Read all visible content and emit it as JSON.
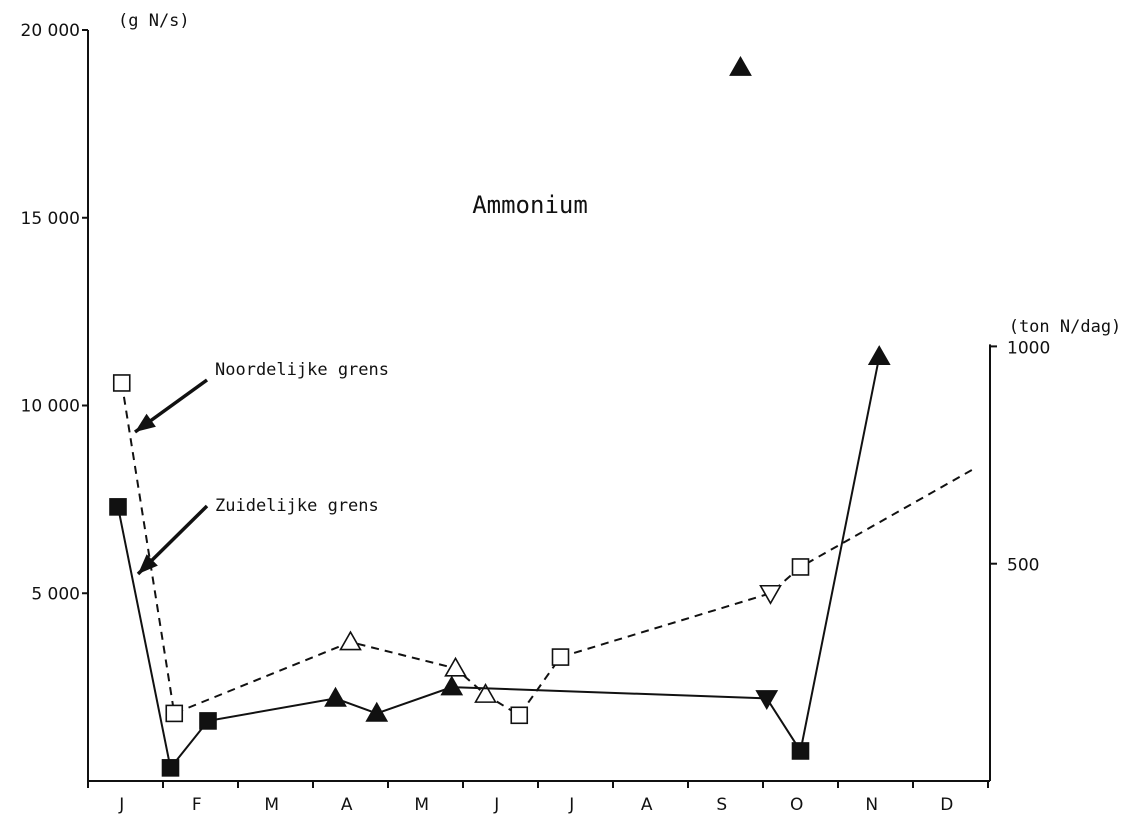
{
  "chart_data": {
    "type": "line",
    "title": "Ammonium",
    "left_axis": {
      "unit": "(g N/s)",
      "ylim": [
        0,
        20000
      ],
      "ticks": [
        5000,
        10000,
        15000,
        20000
      ],
      "tick_labels": [
        "5 000",
        "10 000",
        "15 000",
        "20 000"
      ]
    },
    "right_axis": {
      "unit": "(ton N/dag)",
      "ylim": [
        0,
        1728
      ],
      "ticks": [
        500,
        1000
      ],
      "tick_labels": [
        "500",
        "1000"
      ]
    },
    "categories": [
      "J",
      "F",
      "M",
      "A",
      "M",
      "J",
      "J",
      "A",
      "S",
      "O",
      "N",
      "D"
    ],
    "xlim": [
      0,
      12
    ],
    "grid": false,
    "annotations": {
      "noord_label": "Noordelijke grens",
      "zuid_label": "Zuidelijke grens"
    },
    "series": [
      {
        "name": "Noordelijke grens",
        "line_style": "dashed",
        "points": [
          {
            "x": 0.45,
            "y": 10600,
            "marker": "open-square"
          },
          {
            "x": 1.15,
            "y": 1800,
            "marker": "open-square"
          },
          {
            "x": 3.5,
            "y": 3700,
            "marker": "open-triangle-up"
          },
          {
            "x": 4.9,
            "y": 3000,
            "marker": "open-triangle-up"
          },
          {
            "x": 5.3,
            "y": 2300,
            "marker": "open-triangle-up"
          },
          {
            "x": 5.75,
            "y": 1750,
            "marker": "open-square"
          },
          {
            "x": 6.3,
            "y": 3300,
            "marker": "open-square"
          },
          {
            "x": 9.1,
            "y": 5000,
            "marker": "open-triangle-down"
          },
          {
            "x": 9.5,
            "y": 5700,
            "marker": "open-square"
          },
          {
            "x": 11.8,
            "y": 8300,
            "marker": "none"
          }
        ]
      },
      {
        "name": "Zuidelijke grens",
        "line_style": "solid",
        "points": [
          {
            "x": 0.4,
            "y": 7300,
            "marker": "filled-square"
          },
          {
            "x": 1.1,
            "y": 350,
            "marker": "filled-square"
          },
          {
            "x": 1.6,
            "y": 1600,
            "marker": "filled-square"
          },
          {
            "x": 3.3,
            "y": 2200,
            "marker": "filled-triangle-up"
          },
          {
            "x": 3.85,
            "y": 1800,
            "marker": "filled-triangle-up"
          },
          {
            "x": 4.85,
            "y": 2500,
            "marker": "filled-triangle-up"
          },
          {
            "x": 9.05,
            "y": 2200,
            "marker": "filled-triangle-down"
          },
          {
            "x": 9.5,
            "y": 800,
            "marker": "filled-square"
          },
          {
            "x": 10.55,
            "y": 11300,
            "marker": "filled-triangle-up"
          }
        ]
      },
      {
        "name": "",
        "line_style": "none",
        "points": [
          {
            "x": 8.7,
            "y": 19000,
            "marker": "filled-triangle-up"
          }
        ]
      }
    ]
  }
}
